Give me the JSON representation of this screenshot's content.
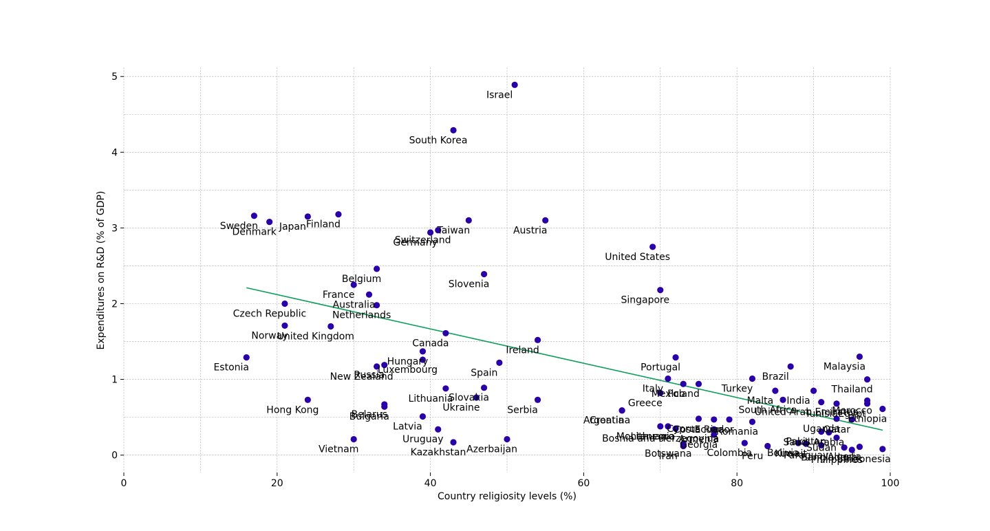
{
  "chart_data": {
    "type": "scatter",
    "title": "",
    "xlabel": "Country religiosity levels (%)",
    "ylabel": "Expenditures on R&D (% of GDP)",
    "xlim": [
      0,
      100
    ],
    "ylim": [
      -0.23,
      5.12
    ],
    "x_ticks": [
      0,
      20,
      40,
      60,
      80,
      100
    ],
    "y_ticks": [
      0,
      1,
      2,
      3,
      4,
      5
    ],
    "grid": true,
    "legend": "none",
    "colors": {
      "points": "#2a00a8",
      "trendline": "#0d9e5b",
      "grid": "#b0b0b0"
    },
    "trendline": {
      "x": [
        16,
        99
      ],
      "y": [
        2.21,
        0.33
      ]
    },
    "points": [
      {
        "label": "Israel",
        "x": 51,
        "y": 4.89
      },
      {
        "label": "South Korea",
        "x": 43,
        "y": 4.29
      },
      {
        "label": "Sweden",
        "x": 17,
        "y": 3.16
      },
      {
        "label": "Denmark",
        "x": 19,
        "y": 3.08
      },
      {
        "label": "Japan",
        "x": 24,
        "y": 3.15
      },
      {
        "label": "Finland",
        "x": 28,
        "y": 3.18
      },
      {
        "label": "Switzerland",
        "x": 41,
        "y": 2.97
      },
      {
        "label": "Germany",
        "x": 40,
        "y": 2.94
      },
      {
        "label": "Taiwan",
        "x": 45,
        "y": 3.1
      },
      {
        "label": "Austria",
        "x": 55,
        "y": 3.1
      },
      {
        "label": "United States",
        "x": 69,
        "y": 2.75
      },
      {
        "label": "Belgium",
        "x": 33,
        "y": 2.46
      },
      {
        "label": "Slovenia",
        "x": 47,
        "y": 2.39
      },
      {
        "label": "France",
        "x": 30,
        "y": 2.25
      },
      {
        "label": "Australia",
        "x": 32,
        "y": 2.12
      },
      {
        "label": "Singapore",
        "x": 70,
        "y": 2.18
      },
      {
        "label": "Czech Republic",
        "x": 21,
        "y": 2.0
      },
      {
        "label": "Netherlands",
        "x": 33,
        "y": 1.98
      },
      {
        "label": "Norway",
        "x": 21,
        "y": 1.71
      },
      {
        "label": "United Kingdom",
        "x": 27,
        "y": 1.7
      },
      {
        "label": "Canada",
        "x": 42,
        "y": 1.61
      },
      {
        "label": "Ireland",
        "x": 54,
        "y": 1.52
      },
      {
        "label": "Estonia",
        "x": 16,
        "y": 1.29
      },
      {
        "label": "Hungary",
        "x": 39,
        "y": 1.37
      },
      {
        "label": "Luxembourg",
        "x": 39,
        "y": 1.26
      },
      {
        "label": "Russia",
        "x": 34,
        "y": 1.19
      },
      {
        "label": "New Zealand",
        "x": 33,
        "y": 1.17
      },
      {
        "label": "Spain",
        "x": 49,
        "y": 1.22
      },
      {
        "label": "Portugal",
        "x": 72,
        "y": 1.29
      },
      {
        "label": "Italy",
        "x": 71,
        "y": 1.01
      },
      {
        "label": "Malaysia",
        "x": 96,
        "y": 1.3
      },
      {
        "label": "Brazil",
        "x": 87,
        "y": 1.17
      },
      {
        "label": "Greece",
        "x": 70,
        "y": 0.82
      },
      {
        "label": "Mexico",
        "x": 73,
        "y": 0.94
      },
      {
        "label": "Poland",
        "x": 75,
        "y": 0.94
      },
      {
        "label": "Turkey",
        "x": 82,
        "y": 1.01
      },
      {
        "label": "Thailand",
        "x": 97,
        "y": 1.0
      },
      {
        "label": "Lithuania",
        "x": 42,
        "y": 0.88
      },
      {
        "label": "Slovakia",
        "x": 47,
        "y": 0.89
      },
      {
        "label": "Ukraine",
        "x": 46,
        "y": 0.76
      },
      {
        "label": "Serbia",
        "x": 54,
        "y": 0.73
      },
      {
        "label": "Croatia",
        "x": 65,
        "y": 0.59
      },
      {
        "label": "Hong Kong",
        "x": 24,
        "y": 0.73
      },
      {
        "label": "Belarus",
        "x": 34,
        "y": 0.67
      },
      {
        "label": "Bulgaria",
        "x": 34,
        "y": 0.64
      },
      {
        "label": "Malta",
        "x": 85,
        "y": 0.85
      },
      {
        "label": "India",
        "x": 90,
        "y": 0.85
      },
      {
        "label": "South Africa",
        "x": 86,
        "y": 0.73
      },
      {
        "label": "United Arab Emirates",
        "x": 91,
        "y": 0.7
      },
      {
        "label": "Morocco",
        "x": 97,
        "y": 0.72
      },
      {
        "label": "Tunisia",
        "x": 93,
        "y": 0.68
      },
      {
        "label": "Egypt",
        "x": 97,
        "y": 0.68
      },
      {
        "label": "Ethiopia",
        "x": 99,
        "y": 0.61
      },
      {
        "label": "Argentina",
        "x": 65,
        "y": 0.59
      },
      {
        "label": "Latvia",
        "x": 39,
        "y": 0.51
      },
      {
        "label": "Cyprus",
        "x": 75,
        "y": 0.48
      },
      {
        "label": "Costa Rica",
        "x": 77,
        "y": 0.47
      },
      {
        "label": "Ecuador",
        "x": 79,
        "y": 0.47
      },
      {
        "label": "Uganda",
        "x": 93,
        "y": 0.48
      },
      {
        "label": "Qatar",
        "x": 95,
        "y": 0.47
      },
      {
        "label": "Uruguay",
        "x": 41,
        "y": 0.34
      },
      {
        "label": "Montenegro",
        "x": 70,
        "y": 0.38
      },
      {
        "label": "Lithuania_",
        "x": 71,
        "y": 0.38
      },
      {
        "label": "Bosnia and Herzegovina",
        "x": 72,
        "y": 0.35
      },
      {
        "label": "Armenia",
        "x": 77,
        "y": 0.34
      },
      {
        "label": "Romania",
        "x": 82,
        "y": 0.44
      },
      {
        "label": "Botswana",
        "x": 73,
        "y": 0.15
      },
      {
        "label": "Colombia",
        "x": 81,
        "y": 0.16
      },
      {
        "label": "Kuwait",
        "x": 89,
        "y": 0.15
      },
      {
        "label": "Saudi Arabia",
        "x": 92,
        "y": 0.3
      },
      {
        "label": "Sudan",
        "x": 93,
        "y": 0.23
      },
      {
        "label": "Pakistan",
        "x": 91,
        "y": 0.31
      },
      {
        "label": "Vietnam",
        "x": 30,
        "y": 0.21
      },
      {
        "label": "Kazakhstan",
        "x": 43,
        "y": 0.17
      },
      {
        "label": "Azerbaijan",
        "x": 50,
        "y": 0.21
      },
      {
        "label": "Iran",
        "x": 73,
        "y": 0.12
      },
      {
        "label": "Georgia",
        "x": 77,
        "y": 0.27
      },
      {
        "label": "Peru",
        "x": 84,
        "y": 0.12
      },
      {
        "label": "Bolivia",
        "x": 88,
        "y": 0.16
      },
      {
        "label": "Paraguay",
        "x": 91,
        "y": 0.13
      },
      {
        "label": "Bangladesh",
        "x": 94,
        "y": 0.1
      },
      {
        "label": "Philippines",
        "x": 95,
        "y": 0.07
      },
      {
        "label": "Algeria",
        "x": 96,
        "y": 0.11
      },
      {
        "label": "Indonesia",
        "x": 99,
        "y": 0.08
      }
    ],
    "label_texts": [
      "Israel",
      "South Korea",
      "Sweden",
      "Denmark",
      "Japan",
      "Finland",
      "Switzerland",
      "Germany",
      "Taiwan",
      "Austria",
      "United States",
      "Belgium",
      "Slovenia",
      "France",
      "Australia",
      "Singapore",
      "Czech Republic",
      "Netherlands",
      "Norway",
      "United Kingdom",
      "Canada",
      "Ireland",
      "Estonia",
      "Hungary",
      "Luxembourg",
      "Russia",
      "New Zealand",
      "Spain",
      "Portugal",
      "Italy",
      "Malaysia",
      "Brazil",
      "Greece",
      "Mexico",
      "Poland",
      "Turkey",
      "Thailand",
      "Lithuania",
      "Slovakia",
      "Ukraine",
      "Serbia",
      "Croatia",
      "Hong Kong",
      "Belarus",
      "Bulgaria",
      "Malta",
      "India",
      "South Africa",
      "United Arab Emirates",
      "Morocco",
      "Tunisia",
      "Egypt",
      "Ethiopia",
      "Argentina",
      "Latvia",
      "Cyprus",
      "Costa Rica",
      "Ecuador",
      "Uganda",
      "Qatar",
      "Uruguay",
      "Montenegro",
      "Lithuania",
      "Bosnia and Herzegovina",
      "Armenia",
      "Romania",
      "Botswana",
      "Colombia",
      "Kuwait",
      "Saudi Arabia",
      "Sudan",
      "Pakistan",
      "Vietnam",
      "Kazakhstan",
      "Azerbaijan",
      "Iran",
      "Georgia",
      "Peru",
      "Bolivia",
      "Paraguay",
      "Bangladesh",
      "Philippines",
      "Algeria",
      "Indonesia"
    ]
  }
}
